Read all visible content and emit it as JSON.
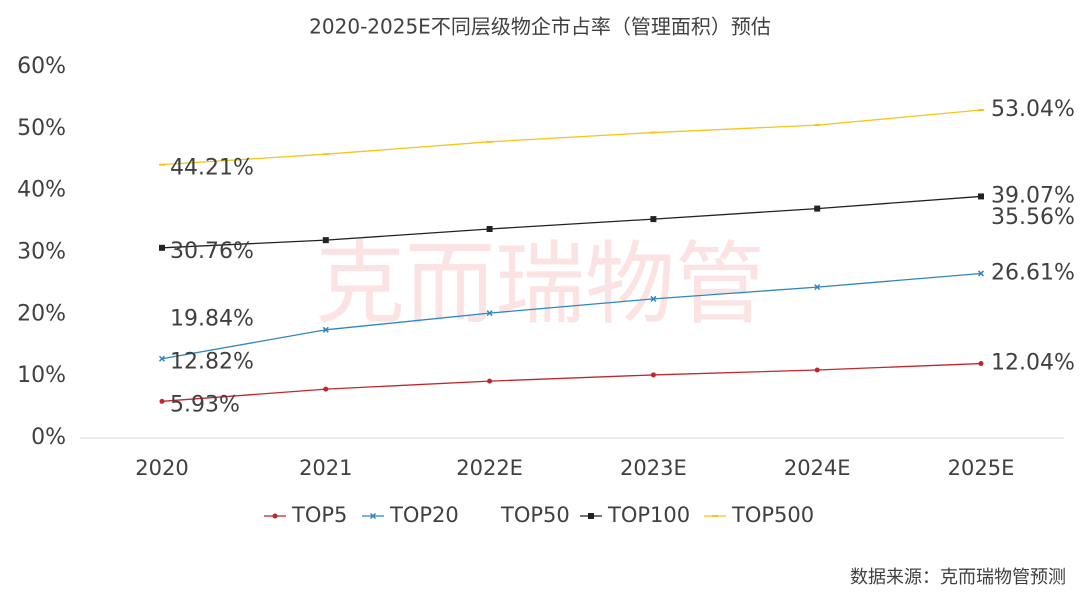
{
  "chart_data": {
    "type": "line",
    "title": "2020-2025E不同层级物企市占率（管理面积）预估",
    "watermark": "克而瑞物管",
    "source": "数据来源：克而瑞物管预测",
    "categories": [
      "2020",
      "2021",
      "2022E",
      "2023E",
      "2024E",
      "2025E"
    ],
    "ylim": [
      0,
      60
    ],
    "yticks": [
      {
        "value": 0,
        "label": "0%"
      },
      {
        "value": 10,
        "label": "10%"
      },
      {
        "value": 20,
        "label": "20%"
      },
      {
        "value": 30,
        "label": "30%"
      },
      {
        "value": 40,
        "label": "40%"
      },
      {
        "value": 50,
        "label": "50%"
      },
      {
        "value": 60,
        "label": "60%"
      }
    ],
    "grid": false,
    "legend": "bottom",
    "series": [
      {
        "name": "TOP5",
        "color": "#c0272d",
        "marker": "circle",
        "values": [
          5.93,
          7.9,
          9.2,
          10.2,
          11.0,
          12.04
        ],
        "value_labels": [
          "5.93%",
          null,
          null,
          null,
          null,
          "12.04%"
        ]
      },
      {
        "name": "TOP20",
        "color": "#2e86c1",
        "marker": "x",
        "values": [
          12.82,
          17.5,
          20.2,
          22.5,
          24.4,
          26.61
        ],
        "value_labels": [
          "12.82%",
          null,
          null,
          null,
          null,
          "26.61%"
        ]
      },
      {
        "name": "TOP50",
        "color": "#ffffff",
        "marker": "none",
        "values": [
          19.84,
          null,
          null,
          null,
          null,
          35.56
        ],
        "value_labels": [
          "19.84%",
          null,
          null,
          null,
          null,
          "35.56%"
        ]
      },
      {
        "name": "TOP100",
        "color": "#222222",
        "marker": "square",
        "values": [
          30.76,
          32.0,
          33.8,
          35.4,
          37.1,
          39.07
        ],
        "value_labels": [
          "30.76%",
          null,
          null,
          null,
          null,
          "39.07%"
        ]
      },
      {
        "name": "TOP500",
        "color": "#f5c518",
        "marker": "dash",
        "values": [
          44.21,
          45.9,
          47.9,
          49.4,
          50.6,
          53.04
        ],
        "value_labels": [
          "44.21%",
          null,
          null,
          null,
          null,
          "53.04%"
        ]
      }
    ]
  }
}
